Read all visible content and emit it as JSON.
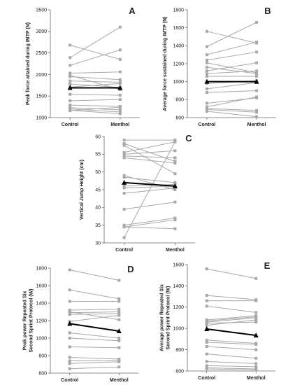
{
  "chart_data": [
    {
      "panel_label": "A",
      "type": "line",
      "categories": [
        "Control",
        "Menthol"
      ],
      "ylabel": "Peak force attained during IMTP (N)",
      "ylim": [
        1000,
        3500
      ],
      "yticks": [
        1000,
        1500,
        2000,
        2500,
        3000,
        3500
      ],
      "series": [
        {
          "values": [
            2390,
            3100
          ]
        },
        {
          "values": [
            2680,
            2350
          ]
        },
        {
          "values": [
            2210,
            2570
          ]
        },
        {
          "values": [
            2030,
            2060
          ]
        },
        {
          "values": [
            1980,
            1650
          ]
        },
        {
          "values": [
            1950,
            1880
          ]
        },
        {
          "values": [
            1850,
            1820
          ]
        },
        {
          "values": [
            1780,
            1700
          ]
        },
        {
          "values": [
            1710,
            1790
          ]
        },
        {
          "values": [
            1540,
            1520
          ]
        },
        {
          "values": [
            1390,
            1420
          ]
        },
        {
          "values": [
            1290,
            1260
          ]
        },
        {
          "values": [
            1230,
            1180
          ]
        },
        {
          "values": [
            1200,
            1130
          ]
        },
        {
          "values": [
            1170,
            1090
          ]
        },
        {
          "values": [
            1160,
            1240
          ]
        }
      ],
      "mean": [
        1690,
        1690
      ],
      "mean_color": "#000000",
      "individual_color": "#a8a8a8",
      "grid": false
    },
    {
      "panel_label": "B",
      "type": "line",
      "categories": [
        "Control",
        "Menthol"
      ],
      "ylabel": "Average force sustained during IMTP (N)",
      "ylim": [
        600,
        1800
      ],
      "yticks": [
        600,
        800,
        1000,
        1200,
        1400,
        1600,
        1800
      ],
      "series": [
        {
          "values": [
            1560,
            1430
          ]
        },
        {
          "values": [
            1390,
            1660
          ]
        },
        {
          "values": [
            1300,
            1440
          ]
        },
        {
          "values": [
            1240,
            1330
          ]
        },
        {
          "values": [
            1210,
            1100
          ]
        },
        {
          "values": [
            1160,
            1090
          ]
        },
        {
          "values": [
            1120,
            1210
          ]
        },
        {
          "values": [
            1090,
            1120
          ]
        },
        {
          "values": [
            1060,
            1060
          ]
        },
        {
          "values": [
            980,
            1010
          ]
        },
        {
          "values": [
            920,
            990
          ]
        },
        {
          "values": [
            880,
            900
          ]
        },
        {
          "values": [
            760,
            820
          ]
        },
        {
          "values": [
            720,
            830
          ]
        },
        {
          "values": [
            700,
            680
          ]
        },
        {
          "values": [
            690,
            660
          ]
        },
        {
          "values": [
            670,
            610
          ]
        }
      ],
      "mean": [
        1000,
        1000
      ],
      "mean_color": "#000000",
      "individual_color": "#a8a8a8",
      "grid": false
    },
    {
      "panel_label": "C",
      "type": "line",
      "categories": [
        "Control",
        "Menthol"
      ],
      "ylabel": "Vertical Jump Height (cm)",
      "ylim": [
        30,
        60
      ],
      "yticks": [
        30,
        35,
        40,
        45,
        50,
        55,
        60
      ],
      "series": [
        {
          "values": [
            59,
            59
          ]
        },
        {
          "values": [
            58,
            53
          ]
        },
        {
          "values": [
            57.5,
            49.5
          ]
        },
        {
          "values": [
            55.5,
            58.5
          ]
        },
        {
          "values": [
            55,
            56
          ]
        },
        {
          "values": [
            54.5,
            54
          ]
        },
        {
          "values": [
            54,
            52.5
          ]
        },
        {
          "values": [
            49,
            45
          ]
        },
        {
          "values": [
            48.5,
            47
          ]
        },
        {
          "values": [
            46,
            46.5
          ]
        },
        {
          "values": [
            45.5,
            46
          ]
        },
        {
          "values": [
            44,
            45.5
          ]
        },
        {
          "values": [
            39.5,
            41.5
          ]
        },
        {
          "values": [
            35,
            37
          ]
        },
        {
          "values": [
            34.5,
            36.5
          ]
        },
        {
          "values": [
            34.5,
            34
          ]
        },
        {
          "values": [
            31.5,
            58.5
          ]
        }
      ],
      "mean": [
        47,
        46
      ],
      "mean_color": "#000000",
      "individual_color": "#a8a8a8",
      "grid": false
    },
    {
      "panel_label": "D",
      "type": "line",
      "categories": [
        "Control",
        "Menthol"
      ],
      "ylabel": "Peak power Repeated Six Second Sprint Protocol (W)",
      "ylim": [
        600,
        1800
      ],
      "yticks": [
        600,
        800,
        1000,
        1200,
        1400,
        1600,
        1800
      ],
      "series": [
        {
          "values": [
            1780,
            1660
          ]
        },
        {
          "values": [
            1550,
            1450
          ]
        },
        {
          "values": [
            1420,
            1420
          ]
        },
        {
          "values": [
            1320,
            1330
          ]
        },
        {
          "values": [
            1300,
            1210
          ]
        },
        {
          "values": [
            1290,
            1300
          ]
        },
        {
          "values": [
            1270,
            1280
          ]
        },
        {
          "values": [
            1190,
            1260
          ]
        },
        {
          "values": [
            1060,
            1000
          ]
        },
        {
          "values": [
            1000,
            970
          ]
        },
        {
          "values": [
            900,
            890
          ]
        },
        {
          "values": [
            780,
            760
          ]
        },
        {
          "values": [
            740,
            740
          ]
        },
        {
          "values": [
            710,
            730
          ]
        },
        {
          "values": [
            650,
            670
          ]
        }
      ],
      "mean": [
        1165,
        1080
      ],
      "mean_color": "#000000",
      "individual_color": "#a8a8a8",
      "grid": false
    },
    {
      "panel_label": "E",
      "type": "line",
      "categories": [
        "Control",
        "Menthol"
      ],
      "ylabel": "Average power Repeated Six Second Sprint Protocol (W)",
      "ylim": [
        600,
        1600
      ],
      "yticks": [
        600,
        800,
        1000,
        1200,
        1400,
        1600
      ],
      "series": [
        {
          "values": [
            1560,
            1470
          ]
        },
        {
          "values": [
            1310,
            1270
          ]
        },
        {
          "values": [
            1260,
            1260
          ]
        },
        {
          "values": [
            1210,
            1150
          ]
        },
        {
          "values": [
            1080,
            1120
          ]
        },
        {
          "values": [
            1070,
            1110
          ]
        },
        {
          "values": [
            1060,
            1100
          ]
        },
        {
          "values": [
            1050,
            1060
          ]
        },
        {
          "values": [
            1030,
            1080
          ]
        },
        {
          "values": [
            890,
            860
          ]
        },
        {
          "values": [
            870,
            850
          ]
        },
        {
          "values": [
            830,
            800
          ]
        },
        {
          "values": [
            760,
            720
          ]
        },
        {
          "values": [
            690,
            670
          ]
        },
        {
          "values": [
            650,
            640
          ]
        },
        {
          "values": [
            630,
            620
          ]
        },
        {
          "values": [
            620,
            610
          ]
        }
      ],
      "mean": [
        995,
        935
      ],
      "mean_color": "#000000",
      "individual_color": "#a8a8a8",
      "grid": false
    }
  ]
}
